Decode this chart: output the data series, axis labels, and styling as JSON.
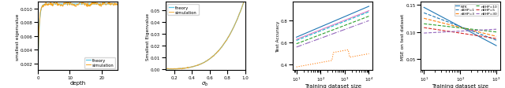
{
  "panel1": {
    "xlabel": "depth",
    "ylabel": "smallest eigenvalue",
    "xlim": [
      0,
      25
    ],
    "ylim": [
      0.001,
      0.011
    ],
    "yticks": [
      0.002,
      0.004,
      0.006,
      0.008,
      0.01
    ],
    "theory_color": "#5bc8e8",
    "sim_color": "#f5a623",
    "legend": [
      "theory",
      "simulation"
    ]
  },
  "panel2": {
    "xlabel": "$\\sigma_b$",
    "ylabel": "Smallest Eigenvalue",
    "xlim": [
      0.1,
      1.0
    ],
    "ylim": [
      -0.001,
      0.057
    ],
    "yticks": [
      0.0,
      0.01,
      0.02,
      0.03,
      0.04,
      0.05
    ],
    "theory_color": "#5bc8e8",
    "sim_color": "#f5a623",
    "legend": [
      "theory",
      "simulation"
    ]
  },
  "panel3": {
    "xlabel": "Training dataset size",
    "ylabel": "Test Accuracy",
    "ylim": [
      0.35,
      0.97
    ],
    "yticks": [
      0.4,
      0.6,
      0.8
    ],
    "colors": [
      "#1f77b4",
      "#ff69b4",
      "#2ca02c",
      "#9467bd",
      "#ff7f0e",
      "#d62728"
    ],
    "lstyles": [
      "-",
      "-",
      "--",
      "-.",
      ":",
      "-."
    ]
  },
  "panel4": {
    "xlabel": "Training dataset size",
    "ylabel": "MSE on test dataset",
    "ylim": [
      0.03,
      0.155
    ],
    "yticks": [
      0.05,
      0.1,
      0.15
    ],
    "colors": [
      "#1f77b4",
      "#1f77b4",
      "#ff7f0e",
      "#2ca02c",
      "#d62728",
      "#9467bd"
    ],
    "lstyles": [
      "-",
      "--",
      "--",
      "--",
      "--",
      "--"
    ],
    "labels": [
      "NTK",
      "nBHP=1",
      "nBHP=3",
      "nBHP=10",
      "nBHP=5",
      "nBHP=30"
    ]
  }
}
